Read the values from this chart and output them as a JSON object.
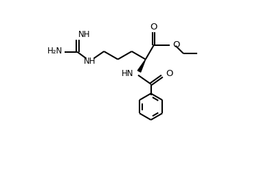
{
  "bg_color": "#ffffff",
  "line_color": "#000000",
  "lw": 1.5,
  "fs": 8.5,
  "xlim": [
    0,
    10
  ],
  "ylim": [
    -4.5,
    3.5
  ],
  "figsize": [
    3.74,
    2.54
  ],
  "dpi": 100
}
